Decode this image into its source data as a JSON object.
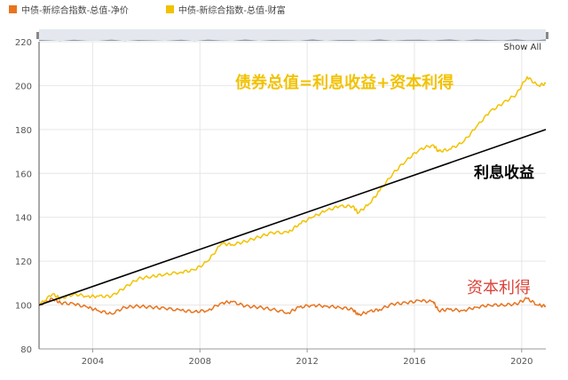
{
  "legend": {
    "items": [
      {
        "label": "中债-新综合指数-总值-净价",
        "color": "#e8741e"
      },
      {
        "label": "中债-新综合指数-总值-财富",
        "color": "#f2c200"
      }
    ]
  },
  "navigator": {
    "show_all_label": "Show All"
  },
  "annotations": {
    "total_value": "债券总值=利息收益+资本利得",
    "interest_income": "利息收益",
    "capital_gain": "资本利得"
  },
  "chart_data": {
    "type": "line",
    "xlim": [
      2002.0,
      2020.9
    ],
    "ylim": [
      80,
      220
    ],
    "x_ticks": [
      "2004",
      "2008",
      "2012",
      "2016",
      "2020"
    ],
    "y_ticks": [
      "80",
      "100",
      "120",
      "140",
      "160",
      "180",
      "200",
      "220"
    ],
    "grid": true,
    "legend_position": "top-left",
    "series": [
      {
        "name": "中债-新综合指数-总值-净价",
        "color": "#e8741e",
        "points": [
          [
            2002.0,
            100
          ],
          [
            2002.5,
            103
          ],
          [
            2002.8,
            101
          ],
          [
            2003.3,
            100.5
          ],
          [
            2003.8,
            99
          ],
          [
            2004.2,
            97.5
          ],
          [
            2004.7,
            96
          ],
          [
            2005.2,
            99
          ],
          [
            2005.7,
            99.5
          ],
          [
            2006.2,
            99
          ],
          [
            2006.7,
            98.5
          ],
          [
            2007.3,
            97.5
          ],
          [
            2007.8,
            97
          ],
          [
            2008.3,
            97.5
          ],
          [
            2008.8,
            101
          ],
          [
            2009.2,
            101.5
          ],
          [
            2009.7,
            99.5
          ],
          [
            2010.2,
            99
          ],
          [
            2010.7,
            98
          ],
          [
            2011.3,
            96.5
          ],
          [
            2011.7,
            99
          ],
          [
            2012.2,
            100
          ],
          [
            2012.7,
            99.5
          ],
          [
            2013.2,
            99
          ],
          [
            2013.7,
            98
          ],
          [
            2013.9,
            95.5
          ],
          [
            2014.3,
            97
          ],
          [
            2014.7,
            98
          ],
          [
            2015.2,
            100.5
          ],
          [
            2015.7,
            101
          ],
          [
            2016.2,
            102
          ],
          [
            2016.7,
            101.5
          ],
          [
            2016.9,
            97.5
          ],
          [
            2017.3,
            98
          ],
          [
            2017.8,
            97.5
          ],
          [
            2018.3,
            99
          ],
          [
            2018.8,
            100
          ],
          [
            2019.3,
            100
          ],
          [
            2019.8,
            100.5
          ],
          [
            2020.2,
            103
          ],
          [
            2020.6,
            100
          ],
          [
            2020.9,
            99.5
          ]
        ]
      },
      {
        "name": "中债-新综合指数-总值-财富",
        "color": "#f2c200",
        "points": [
          [
            2002.0,
            100
          ],
          [
            2002.5,
            105
          ],
          [
            2002.8,
            103
          ],
          [
            2003.3,
            105
          ],
          [
            2003.8,
            104
          ],
          [
            2004.2,
            104
          ],
          [
            2004.7,
            104
          ],
          [
            2005.2,
            108
          ],
          [
            2005.7,
            112
          ],
          [
            2006.2,
            113
          ],
          [
            2006.7,
            114
          ],
          [
            2007.3,
            115
          ],
          [
            2007.8,
            116
          ],
          [
            2008.3,
            120
          ],
          [
            2008.8,
            128
          ],
          [
            2009.2,
            127.5
          ],
          [
            2009.7,
            129
          ],
          [
            2010.2,
            131
          ],
          [
            2010.7,
            133
          ],
          [
            2011.3,
            133
          ],
          [
            2011.7,
            137
          ],
          [
            2012.2,
            140
          ],
          [
            2012.7,
            143
          ],
          [
            2013.2,
            145
          ],
          [
            2013.7,
            145
          ],
          [
            2013.9,
            142
          ],
          [
            2014.3,
            146
          ],
          [
            2014.7,
            152
          ],
          [
            2015.2,
            160
          ],
          [
            2015.7,
            166
          ],
          [
            2016.2,
            171
          ],
          [
            2016.7,
            173
          ],
          [
            2016.9,
            170
          ],
          [
            2017.3,
            171
          ],
          [
            2017.8,
            174
          ],
          [
            2018.3,
            181
          ],
          [
            2018.8,
            188
          ],
          [
            2019.3,
            192
          ],
          [
            2019.8,
            196
          ],
          [
            2020.2,
            204
          ],
          [
            2020.6,
            200
          ],
          [
            2020.9,
            201
          ]
        ]
      },
      {
        "name": "",
        "color": "#000000",
        "points": [
          [
            2002.0,
            100
          ],
          [
            2020.9,
            180
          ]
        ]
      }
    ]
  }
}
